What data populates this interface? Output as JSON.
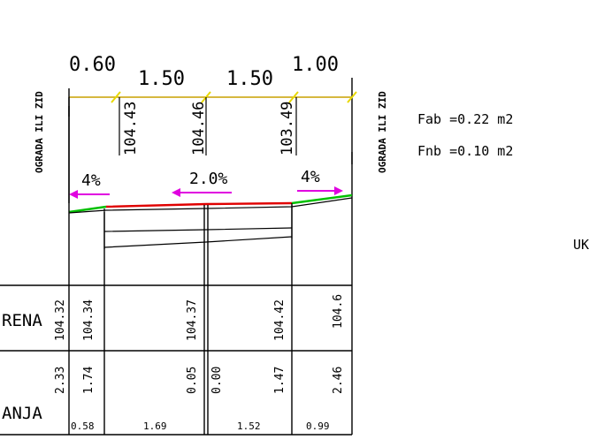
{
  "dimensions": [
    {
      "label": "0.60"
    },
    {
      "label": "1.50"
    },
    {
      "label": "1.50"
    },
    {
      "label": "1.00"
    }
  ],
  "top_elevations": [
    "104.43",
    "104.46",
    "103.49"
  ],
  "side_labels": {
    "left": "OGRADA ILI ZID",
    "right": "OGRADA ILI ZID"
  },
  "slopes": {
    "left": "4%",
    "center": "2.0%",
    "right": "4%"
  },
  "areas": {
    "fab": "Fab =0.22  m2",
    "fnb": "Fnb =0.10  m2"
  },
  "edge_text": "UK",
  "rows": [
    {
      "label": "RENA",
      "values": [
        "104.32",
        "104.34",
        "104.37",
        "104.42",
        "104.6"
      ]
    },
    {
      "label": "ANJA",
      "values": [
        "2.33",
        "1.74",
        "0.05",
        "0.00",
        "1.47",
        "2.46"
      ],
      "distances": [
        "0.58",
        "1.69",
        "1.52",
        "0.99"
      ]
    }
  ],
  "colors": {
    "ink": "#000000",
    "dimension_line": "#c8a000",
    "tick": "#e8d800",
    "slope_arrow": "#e000e0",
    "terrain_red": "#e00000",
    "terrain_green": "#00c000"
  }
}
